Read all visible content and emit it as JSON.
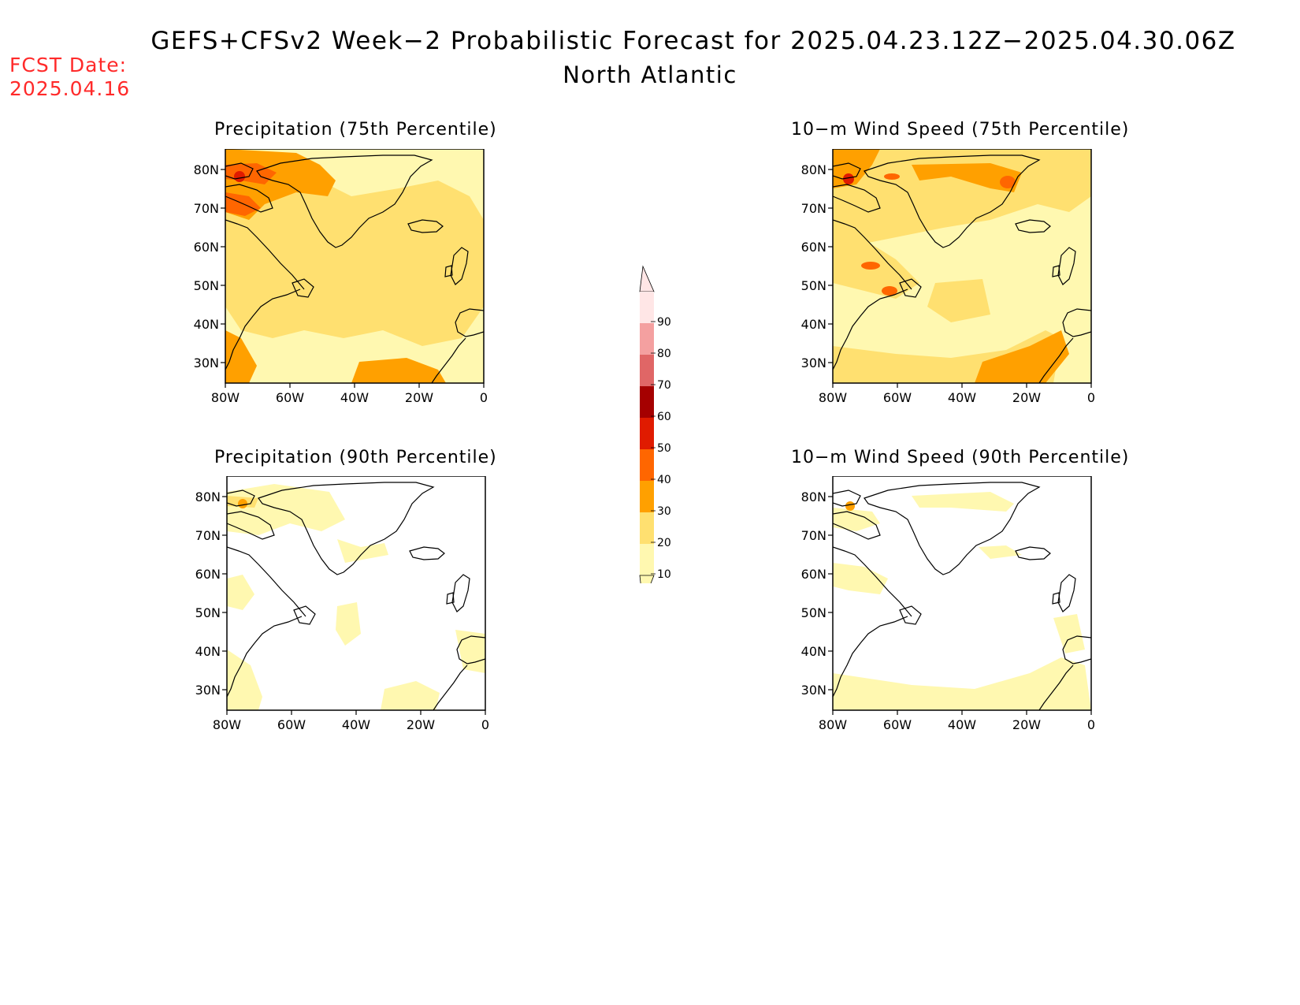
{
  "header": {
    "title": "GEFS+CFSv2 Week−2 Probabilistic Forecast for 2025.04.23.12Z−2025.04.30.06Z",
    "region": "North Atlantic",
    "fcst_label": "FCST Date:",
    "fcst_date": "2025.04.16"
  },
  "panels": [
    {
      "id": "precip75",
      "title": "Precipitation (75th Percentile)",
      "level": "high"
    },
    {
      "id": "wind75",
      "title": "10−m Wind Speed (75th Percentile)",
      "level": "high"
    },
    {
      "id": "precip90",
      "title": "Precipitation (90th Percentile)",
      "level": "low"
    },
    {
      "id": "wind90",
      "title": "10−m Wind Speed (90th Percentile)",
      "level": "low"
    }
  ],
  "axes": {
    "lat_labels": [
      "80N",
      "70N",
      "60N",
      "50N",
      "40N",
      "30N"
    ],
    "lon_labels": [
      "80W",
      "60W",
      "40W",
      "20W",
      "0"
    ]
  },
  "colorbar": {
    "labels": [
      "90",
      "80",
      "70",
      "60",
      "50",
      "40",
      "30",
      "20",
      "10"
    ],
    "colors": [
      "#ffe6e6",
      "#f4a0a0",
      "#e06666",
      "#a50000",
      "#e01b00",
      "#ff6600",
      "#ffa000",
      "#ffe070",
      "#fff8b0"
    ]
  }
}
